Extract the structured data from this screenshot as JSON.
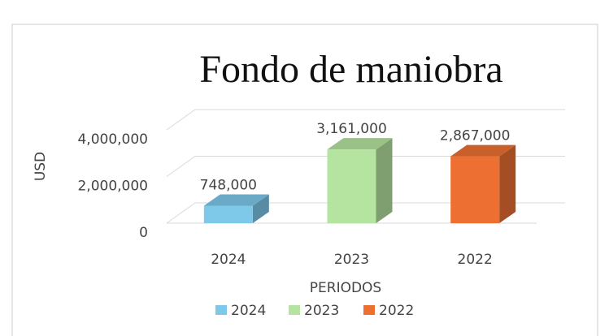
{
  "chart_data": {
    "type": "bar3d",
    "title": "Fondo de maniobra",
    "y_label": "USD",
    "x_label": "PERIODOS",
    "categories": [
      "2024",
      "2023",
      "2022"
    ],
    "series": [
      {
        "name": "2024",
        "color": "#7ec8ea"
      },
      {
        "name": "2023",
        "color": "#b5e3a0"
      },
      {
        "name": "2022",
        "color": "#ed7032"
      }
    ],
    "values": [
      748000,
      3161000,
      2867000
    ],
    "value_labels": [
      "748,000",
      "3,161,000",
      "2,867,000"
    ],
    "ylim": [
      0,
      4000000
    ],
    "yticks": [
      0,
      {
        "value": 2000000,
        "label": "2,000,000"
      },
      {
        "value": 4000000,
        "label": "4,000,000"
      }
    ],
    "grid": true,
    "legend": "bottom"
  }
}
